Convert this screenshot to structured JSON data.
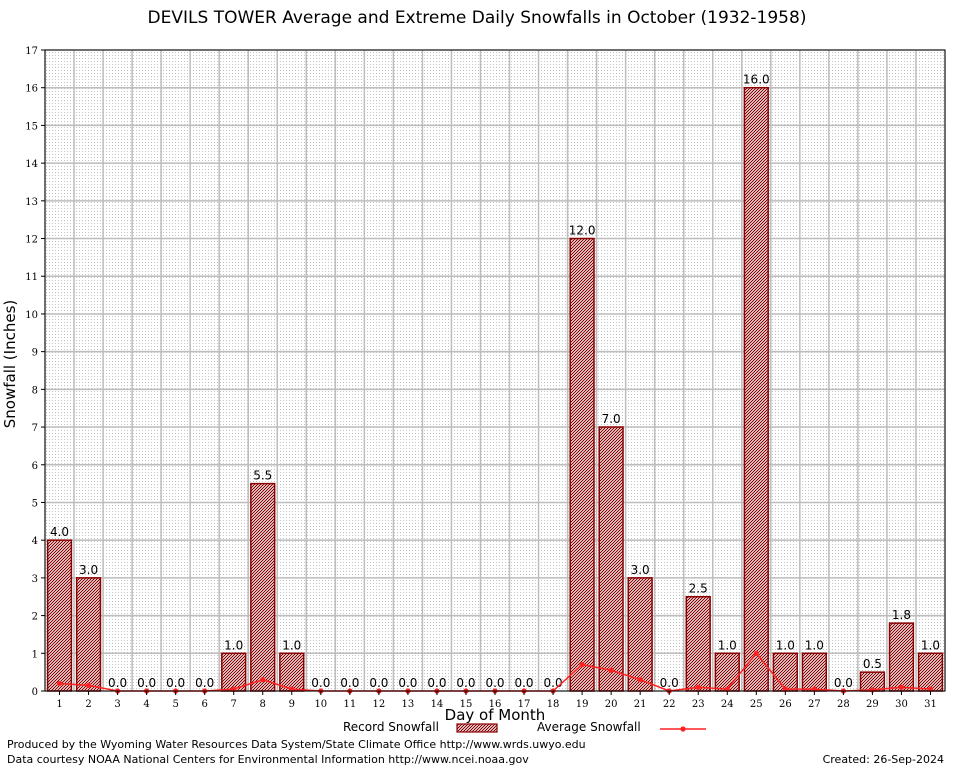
{
  "footer": {
    "producer": "Produced by the Wyoming Water Resources Data System/State Climate Office http://www.wrds.uwyo.edu",
    "courtesy": "Data courtesy NOAA National Centers for Environmental Information http://www.ncei.noaa.gov",
    "created": "Created: 26-Sep-2024"
  },
  "colors": {
    "bar_fill": "#c9a7a7",
    "bar_stroke": "#8b0000",
    "avg_line": "#ff2020",
    "grid": "#bdbdbd"
  },
  "chart_data": {
    "type": "bar",
    "title": "DEVILS TOWER Average and Extreme Daily Snowfalls in October (1932-1958)",
    "xlabel": "Day of Month",
    "ylabel": "Snowfall (Inches)",
    "ylim": [
      0,
      17
    ],
    "yticks": [
      "0",
      "1",
      "2",
      "3",
      "4",
      "5",
      "6",
      "7",
      "8",
      "9",
      "10",
      "11",
      "12",
      "13",
      "14",
      "15",
      "16",
      "17"
    ],
    "categories": [
      "1",
      "2",
      "3",
      "4",
      "5",
      "6",
      "7",
      "8",
      "9",
      "10",
      "11",
      "12",
      "13",
      "14",
      "15",
      "16",
      "17",
      "18",
      "19",
      "20",
      "21",
      "22",
      "23",
      "24",
      "25",
      "26",
      "27",
      "28",
      "29",
      "30",
      "31"
    ],
    "grid": true,
    "legend_position": "bottom",
    "series": [
      {
        "name": "Record Snowfall",
        "type": "bar",
        "values": [
          4.0,
          3.0,
          0.0,
          0.0,
          0.0,
          0.0,
          1.0,
          5.5,
          1.0,
          0.0,
          0.0,
          0.0,
          0.0,
          0.0,
          0.0,
          0.0,
          0.0,
          0.0,
          12.0,
          7.0,
          3.0,
          0.0,
          2.5,
          1.0,
          16.0,
          1.0,
          1.0,
          0.0,
          0.5,
          1.8,
          1.0
        ],
        "labels": [
          "4.0",
          "3.0",
          "0.0",
          "0.0",
          "0.0",
          "0.0",
          "1.0",
          "5.5",
          "1.0",
          "0.0",
          "0.0",
          "0.0",
          "0.0",
          "0.0",
          "0.0",
          "0.0",
          "0.0",
          "0.0",
          "12.0",
          "7.0",
          "3.0",
          "0.0",
          "2.5",
          "1.0",
          "16.0",
          "1.0",
          "1.0",
          "0.0",
          "0.5",
          "1.8",
          "1.0"
        ]
      },
      {
        "name": "Average Snowfall",
        "type": "line",
        "values": [
          0.2,
          0.15,
          0.0,
          0.0,
          0.0,
          0.0,
          0.05,
          0.3,
          0.05,
          0.0,
          0.0,
          0.0,
          0.0,
          0.0,
          0.0,
          0.0,
          0.0,
          0.0,
          0.7,
          0.55,
          0.3,
          0.0,
          0.1,
          0.05,
          1.0,
          0.05,
          0.05,
          0.0,
          0.03,
          0.1,
          0.05
        ]
      }
    ]
  }
}
